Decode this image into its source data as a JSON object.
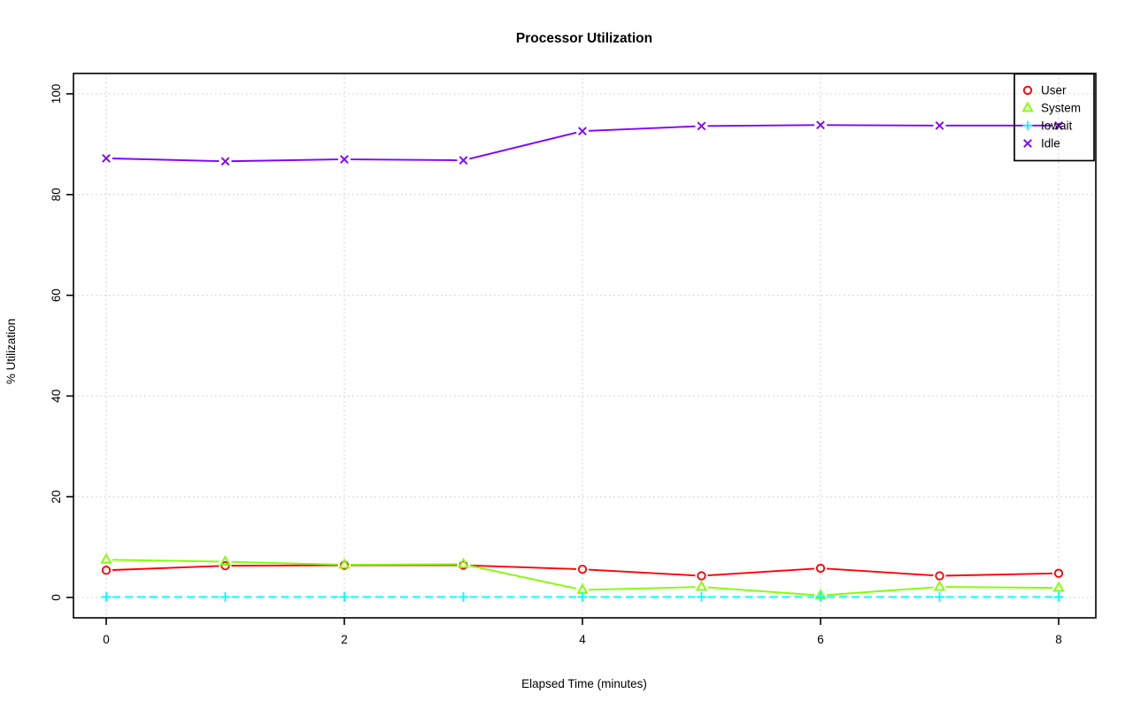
{
  "chart_data": {
    "type": "line",
    "title": "Processor Utilization",
    "xlabel": "Elapsed Time (minutes)",
    "ylabel": "% Utilization",
    "x": [
      0,
      1,
      2,
      3,
      4,
      5,
      6,
      7,
      8
    ],
    "x_ticks": [
      0,
      2,
      4,
      6,
      8
    ],
    "y_ticks": [
      0,
      20,
      40,
      60,
      80,
      100
    ],
    "xlim": [
      0,
      8
    ],
    "ylim": [
      0,
      100
    ],
    "grid": true,
    "grid_style": "dotted-lightgray",
    "legend_position": "topright",
    "series": [
      {
        "name": "User",
        "color": "#FF0000",
        "marker": "circle",
        "linetype": "solid",
        "values": [
          5.4,
          6.3,
          6.4,
          6.4,
          5.6,
          4.3,
          5.8,
          4.3,
          4.8
        ]
      },
      {
        "name": "System",
        "color": "#80FF00",
        "marker": "triangle",
        "linetype": "solid",
        "values": [
          7.5,
          7.1,
          6.5,
          6.6,
          1.5,
          2.1,
          0.4,
          2.1,
          1.9
        ]
      },
      {
        "name": "Iowait",
        "color": "#00FFFF",
        "marker": "plus",
        "linetype": "dashed",
        "values": [
          0.1,
          0.1,
          0.1,
          0.1,
          0.1,
          0.1,
          0.1,
          0.1,
          0.1
        ]
      },
      {
        "name": "Idle",
        "color": "#8000FF",
        "marker": "x",
        "linetype": "solid",
        "values": [
          87.2,
          86.6,
          87.0,
          86.8,
          92.6,
          93.6,
          93.8,
          93.7,
          93.7
        ]
      }
    ]
  },
  "colors": {
    "grid": "#d6d6d6",
    "axis": "#000000",
    "background": "#ffffff"
  }
}
